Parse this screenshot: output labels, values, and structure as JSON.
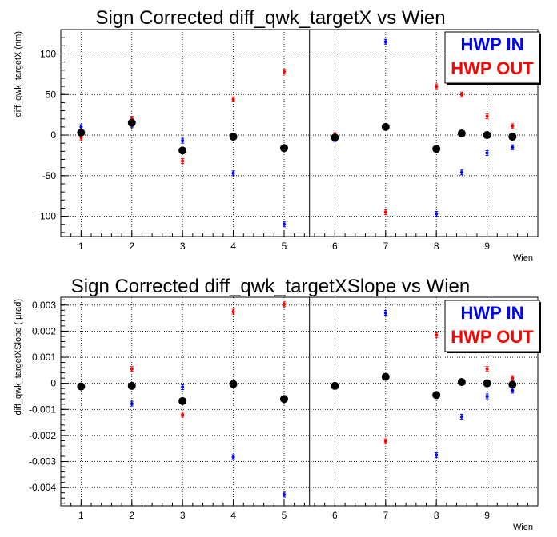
{
  "chart_data": [
    {
      "type": "scatter",
      "title": "Sign Corrected diff_qwk_targetX vs Wien",
      "xlabel": "Wien",
      "ylabel": "diff_qwk_targetX (nm)",
      "xlim": [
        0.6,
        10.0
      ],
      "ylim": [
        -125,
        130
      ],
      "xticks": [
        1,
        2,
        3,
        4,
        5,
        6,
        7,
        8,
        9
      ],
      "yticks": [
        -100,
        -50,
        0,
        50,
        100
      ],
      "divider_x": 5.5,
      "grid": true,
      "legend": "top-right",
      "series": [
        {
          "name": "HWP IN",
          "color": "#0000ff",
          "x": [
            1,
            2,
            3,
            4,
            5,
            6,
            7,
            8,
            8.5,
            9,
            9.5
          ],
          "y": [
            10,
            12,
            -7,
            -47,
            -110,
            -5,
            115,
            -97,
            -46,
            -22,
            -15
          ]
        },
        {
          "name": "HWP OUT",
          "color": "#ff0000",
          "x": [
            1,
            2,
            3,
            4,
            5,
            6,
            7,
            8,
            8.5,
            9,
            9.5
          ],
          "y": [
            -3,
            20,
            -32,
            44,
            78,
            0,
            -95,
            60,
            50,
            23,
            11
          ]
        },
        {
          "color": "#000000",
          "x": [
            1,
            2,
            3,
            4,
            5,
            6,
            7,
            8,
            8.5,
            9,
            9.5
          ],
          "y": [
            3,
            15,
            -19,
            -2,
            -16,
            -3,
            10,
            -17,
            2,
            0,
            -2
          ]
        }
      ]
    },
    {
      "type": "scatter",
      "title": "Sign Corrected diff_qwk_targetXSlope vs Wien",
      "xlabel": "Wien",
      "ylabel": "diff_qwk_targetXSlope (   µrad)",
      "xlim": [
        0.6,
        10.0
      ],
      "ylim": [
        -0.0047,
        0.0033
      ],
      "xticks": [
        1,
        2,
        3,
        4,
        5,
        6,
        7,
        8,
        9
      ],
      "yticks": [
        -0.004,
        -0.003,
        -0.002,
        -0.001,
        0,
        0.001,
        0.002,
        0.003
      ],
      "ytick_labels": [
        "-0.004",
        "-0.003",
        "-0.002",
        "-0.001",
        "0",
        "0.001",
        "0.002",
        "0.003"
      ],
      "divider_x": 5.5,
      "grid": true,
      "legend": "top-right",
      "series": [
        {
          "name": "HWP IN",
          "color": "#0000ff",
          "x": [
            1,
            2,
            3,
            4,
            5,
            6,
            7,
            8,
            8.5,
            9,
            9.5
          ],
          "y": [
            -0.0001,
            -0.00078,
            -0.00015,
            -0.00283,
            -0.00427,
            -8e-05,
            0.0027,
            -0.00275,
            -0.00128,
            -0.0005,
            -0.00028
          ]
        },
        {
          "name": "HWP OUT",
          "color": "#ff0000",
          "x": [
            1,
            2,
            3,
            4,
            5,
            6,
            7,
            8,
            8.5,
            9,
            9.5
          ],
          "y": [
            -0.00015,
            0.00055,
            -0.0012,
            0.00275,
            0.00303,
            -0.0001,
            -0.00222,
            0.00185,
            0.00138,
            0.00055,
            0.0002
          ]
        },
        {
          "color": "#000000",
          "x": [
            1,
            2,
            3,
            4,
            5,
            6,
            7,
            8,
            8.5,
            9,
            9.5
          ],
          "y": [
            -0.00012,
            -0.0001,
            -0.00068,
            -3e-05,
            -0.0006,
            -0.0001,
            0.00025,
            -0.00045,
            5e-05,
            0,
            -5e-05
          ]
        }
      ]
    }
  ]
}
